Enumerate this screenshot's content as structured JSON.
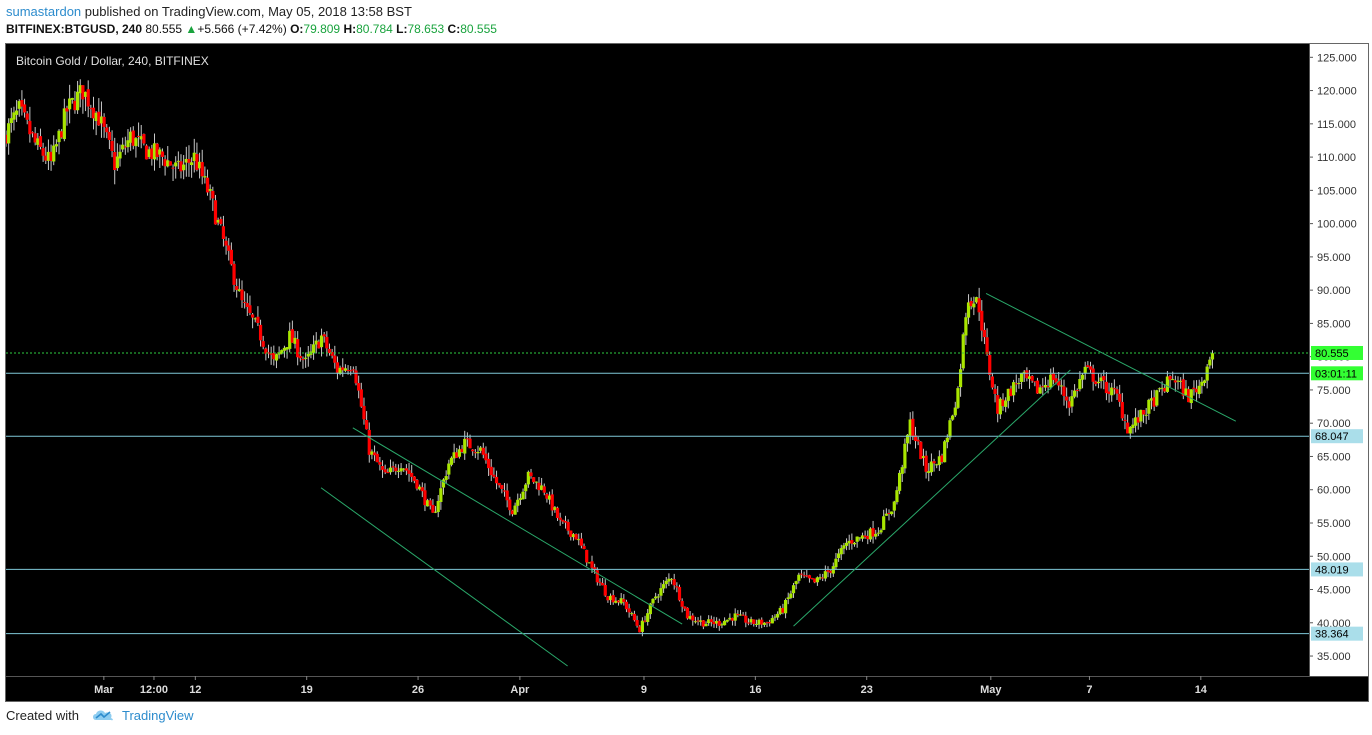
{
  "header": {
    "author": "sumastardon",
    "published_text": "published on TradingView.com, May 05, 2018 13:58 BST",
    "symbol": "BITFINEX:BTGUSD, 240",
    "last": "80.555",
    "change_arrow": "▲",
    "change": "+5.566 (+7.42%)",
    "o_label": "O:",
    "o_value": "79.809",
    "h_label": "H:",
    "h_value": "80.784",
    "l_label": "L:",
    "l_value": "78.653",
    "c_label": "C:",
    "c_value": "80.555"
  },
  "footer": {
    "created_with": "Created with",
    "brand": "TradingView",
    "logo_icon": "tradingview-cloud-icon"
  },
  "colors": {
    "background": "#000000",
    "up_candle": "#a9e600",
    "down_candle": "#ff0000",
    "wick": "#c8c8c8",
    "horizontal_level": "#7fc8d8",
    "trendline": "#2aa86a",
    "current_price_line": "#2ecc40",
    "price_axis_bg": "#ffffff",
    "level_label_bg": "#aadeea",
    "current_label_bg": "#33ff33"
  },
  "chart_data": {
    "type": "candlestick",
    "title": "Bitcoin Gold / Dollar, 240, BITFINEX",
    "interval": "240",
    "ylim": [
      32,
      127
    ],
    "y_ticks": [
      "35.000",
      "40.000",
      "45.000",
      "50.000",
      "55.000",
      "60.000",
      "65.000",
      "70.000",
      "75.000",
      "80.000",
      "85.000",
      "90.000",
      "95.000",
      "100.000",
      "105.000",
      "110.000",
      "115.000",
      "120.000",
      "125.000"
    ],
    "x_ticks": [
      "Mar",
      "12:00",
      "12",
      "19",
      "26",
      "Apr",
      "9",
      "16",
      "23",
      "May",
      "7",
      "14"
    ],
    "x_tick_days": [
      -0.85,
      2.3,
      4.9,
      11.9,
      18.9,
      25.3,
      33.1,
      40.1,
      47.1,
      54.9,
      61.1,
      68.1
    ],
    "x_range_days": [
      -7,
      74.9
    ],
    "price_path": [
      [
        -7,
        113
      ],
      [
        -6,
        117
      ],
      [
        -5,
        112
      ],
      [
        -4,
        109
      ],
      [
        -3,
        117
      ],
      [
        -2,
        120
      ],
      [
        -1,
        116
      ],
      [
        0,
        109
      ],
      [
        1,
        113
      ],
      [
        2,
        111
      ],
      [
        3,
        110
      ],
      [
        4,
        108
      ],
      [
        5,
        110
      ],
      [
        6,
        104
      ],
      [
        7,
        96
      ],
      [
        8,
        88
      ],
      [
        9,
        84
      ],
      [
        10,
        79
      ],
      [
        11,
        83
      ],
      [
        12,
        79
      ],
      [
        13,
        83
      ],
      [
        14,
        78
      ],
      [
        15,
        79
      ],
      [
        16,
        66
      ],
      [
        17,
        62
      ],
      [
        18,
        64
      ],
      [
        19,
        61
      ],
      [
        20,
        56
      ],
      [
        21,
        64
      ],
      [
        22,
        67
      ],
      [
        23,
        66
      ],
      [
        24,
        61
      ],
      [
        25,
        57
      ],
      [
        26,
        62
      ],
      [
        27,
        60
      ],
      [
        28,
        55
      ],
      [
        29,
        53
      ],
      [
        30,
        48
      ],
      [
        31,
        44
      ],
      [
        32,
        43
      ],
      [
        33,
        39
      ],
      [
        34,
        44
      ],
      [
        35,
        47
      ],
      [
        36,
        41
      ],
      [
        37,
        40
      ],
      [
        38,
        40
      ],
      [
        39,
        41
      ],
      [
        40,
        40
      ],
      [
        41,
        40
      ],
      [
        42,
        42
      ],
      [
        43,
        47
      ],
      [
        44,
        46
      ],
      [
        45,
        48
      ],
      [
        46,
        52
      ],
      [
        47,
        53
      ],
      [
        48,
        54
      ],
      [
        49,
        58
      ],
      [
        50,
        70
      ],
      [
        51,
        63
      ],
      [
        52,
        65
      ],
      [
        53,
        75
      ],
      [
        53.6,
        89
      ],
      [
        54.3,
        88
      ],
      [
        54.8,
        80
      ],
      [
        55.5,
        72
      ],
      [
        56,
        74
      ],
      [
        57,
        77
      ],
      [
        58,
        75
      ],
      [
        59,
        77
      ],
      [
        60,
        73
      ],
      [
        61,
        78
      ],
      [
        62,
        76
      ],
      [
        63,
        74
      ],
      [
        63.7,
        69
      ],
      [
        64.5,
        71
      ],
      [
        65.5,
        74
      ],
      [
        66.5,
        77
      ],
      [
        67.5,
        74
      ],
      [
        68.3,
        76
      ],
      [
        68.9,
        80.6
      ]
    ],
    "levels": [
      {
        "value": 77.5,
        "label": "03:01:11"
      },
      {
        "value": 68.047,
        "label": "68.047"
      },
      {
        "value": 48.019,
        "label": "48.019"
      },
      {
        "value": 38.364,
        "label": "38.364"
      }
    ],
    "current_price": 80.555,
    "current_price_label": "80.555",
    "trendlines": [
      {
        "from": [
          14.8,
          69.3
        ],
        "to": [
          35.5,
          39.8
        ]
      },
      {
        "from": [
          12.8,
          60.3
        ],
        "to": [
          28.3,
          33.5
        ]
      },
      {
        "from": [
          42.5,
          39.5
        ],
        "to": [
          59.9,
          78.0
        ]
      },
      {
        "from": [
          54.6,
          89.5
        ],
        "to": [
          70.3,
          70.3
        ]
      }
    ]
  }
}
